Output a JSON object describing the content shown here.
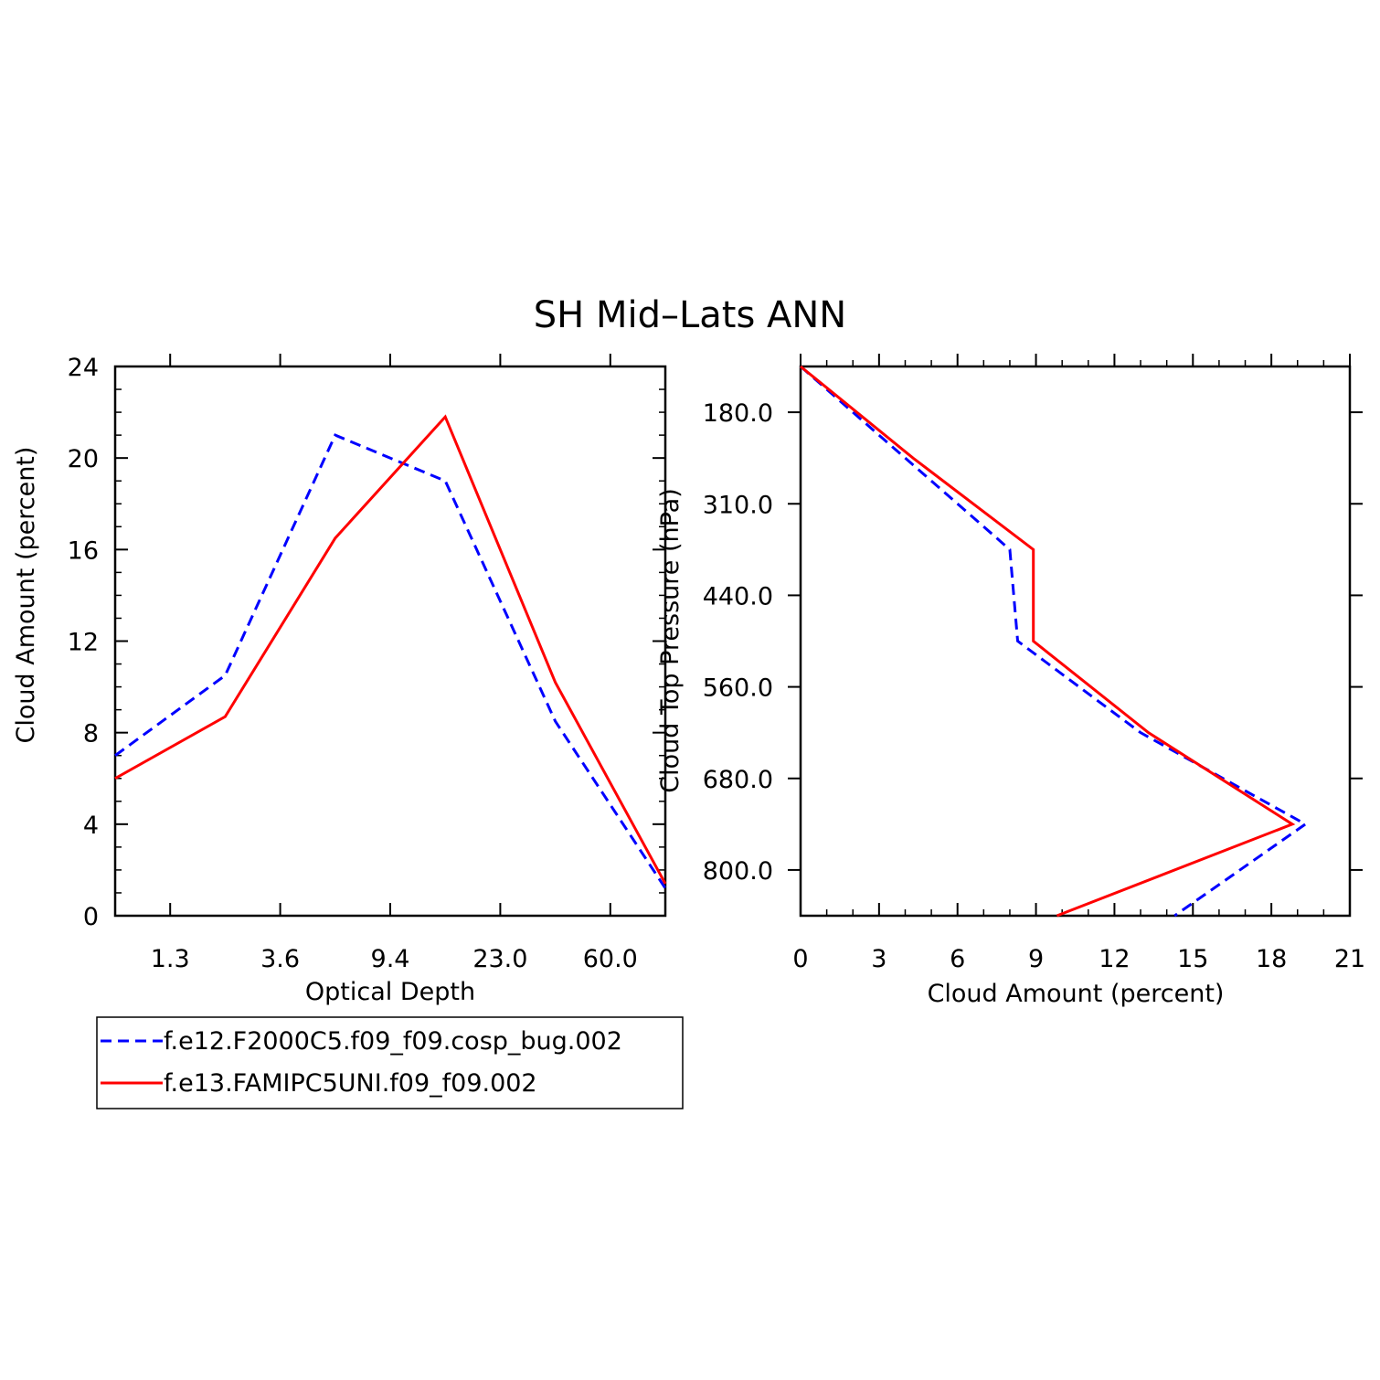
{
  "title": "SH Mid–Lats ANN",
  "colors": {
    "blue": "#0000ff",
    "red": "#ff0000",
    "axis": "#000000"
  },
  "legend": {
    "entries": [
      {
        "label": "f.e12.F2000C5.f09_f09.cosp_bug.002",
        "color": "#0000ff",
        "dash": "dashed"
      },
      {
        "label": "f.e13.FAMIPC5UNI.f09_f09.002",
        "color": "#ff0000",
        "dash": "solid"
      }
    ]
  },
  "chart_data": [
    {
      "type": "line",
      "xlabel": "Optical Depth",
      "ylabel": "Cloud Amount (percent)",
      "x_ticks": [
        "1.3",
        "3.6",
        "9.4",
        "23.0",
        "60.0"
      ],
      "y_ticks": [
        "0",
        "4",
        "8",
        "12",
        "16",
        "20",
        "24"
      ],
      "ylim": [
        0,
        24
      ],
      "x_index_range": [
        0,
        5
      ],
      "grid": false,
      "series": [
        {
          "name": "f.e12.F2000C5.f09_f09.cosp_bug.002",
          "color": "#0000ff",
          "dash": "dashed",
          "x_index": [
            0,
            1,
            2,
            3,
            4,
            5
          ],
          "values": [
            7.0,
            10.5,
            21.0,
            19.0,
            8.5,
            1.2
          ]
        },
        {
          "name": "f.e13.FAMIPC5UNI.f09_f09.002",
          "color": "#ff0000",
          "dash": "solid",
          "x_index": [
            0,
            1,
            2,
            3,
            4,
            5
          ],
          "values": [
            6.0,
            8.7,
            16.5,
            21.8,
            10.2,
            1.4
          ]
        }
      ]
    },
    {
      "type": "line",
      "xlabel": "Cloud Amount (percent)",
      "ylabel": "Cloud Top Pressure (hPa)",
      "x_ticks": [
        "0",
        "3",
        "6",
        "9",
        "12",
        "15",
        "18",
        "21"
      ],
      "y_ticks": [
        "180.0",
        "310.0",
        "440.0",
        "560.0",
        "680.0",
        "800.0"
      ],
      "xlim": [
        0,
        21
      ],
      "y_index_range": [
        0,
        6
      ],
      "y_inverted": true,
      "grid": false,
      "series": [
        {
          "name": "f.e12.F2000C5.f09_f09.cosp_bug.002",
          "color": "#0000ff",
          "dash": "dashed",
          "y_index": [
            0,
            1,
            2,
            3,
            4,
            5,
            6
          ],
          "values": [
            0,
            4.0,
            8.0,
            8.3,
            13.0,
            19.3,
            14.3
          ]
        },
        {
          "name": "f.e13.FAMIPC5UNI.f09_f09.002",
          "color": "#ff0000",
          "dash": "solid",
          "y_index": [
            0,
            1,
            2,
            3,
            4,
            5,
            6
          ],
          "values": [
            0,
            4.3,
            8.9,
            8.9,
            13.3,
            18.8,
            9.8
          ]
        }
      ]
    }
  ]
}
